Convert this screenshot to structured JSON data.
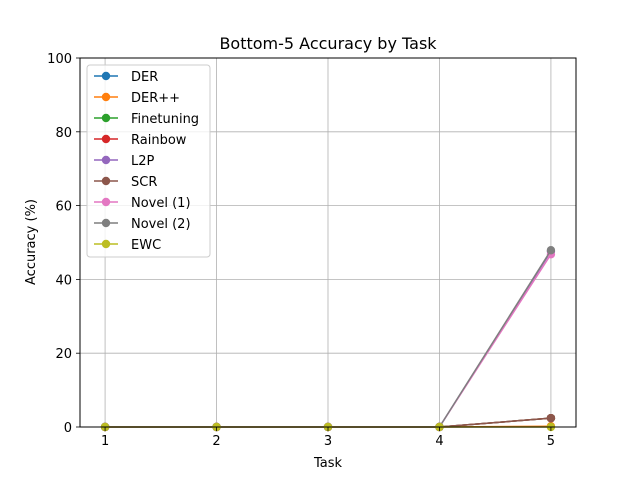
{
  "chart_data": {
    "type": "line",
    "title": "Bottom-5 Accuracy by Task",
    "xlabel": "Task",
    "ylabel": "Accuracy (%)",
    "x": [
      1,
      2,
      3,
      4,
      5
    ],
    "xlim": [
      0.775,
      5.225
    ],
    "ylim": [
      0,
      100
    ],
    "xticks": [
      "1",
      "2",
      "3",
      "4",
      "5"
    ],
    "yticks": [
      "0",
      "20",
      "40",
      "60",
      "80",
      "100"
    ],
    "grid": true,
    "legend_position": "upper-left",
    "series": [
      {
        "name": "DER",
        "color": "#1f77b4",
        "values": [
          0,
          0,
          0,
          0,
          2.4
        ]
      },
      {
        "name": "DER++",
        "color": "#ff7f0e",
        "values": [
          0,
          0,
          0,
          0,
          0.2
        ]
      },
      {
        "name": "Finetuning",
        "color": "#2ca02c",
        "values": [
          0,
          0,
          0,
          0,
          2.4
        ]
      },
      {
        "name": "Rainbow",
        "color": "#d62728",
        "values": [
          0,
          0,
          0,
          0,
          2.4
        ]
      },
      {
        "name": "L2P",
        "color": "#9467bd",
        "values": [
          0,
          0,
          0,
          0,
          47.6
        ]
      },
      {
        "name": "SCR",
        "color": "#8c564b",
        "values": [
          0,
          0,
          0,
          0,
          2.4
        ]
      },
      {
        "name": "Novel (1)",
        "color": "#e377c2",
        "values": [
          0,
          0,
          0,
          0,
          46.8
        ]
      },
      {
        "name": "Novel (2)",
        "color": "#7f7f7f",
        "values": [
          0,
          0,
          0,
          0,
          47.9
        ]
      },
      {
        "name": "EWC",
        "color": "#bcbd22",
        "values": [
          0,
          0,
          0,
          0,
          0
        ]
      }
    ]
  }
}
